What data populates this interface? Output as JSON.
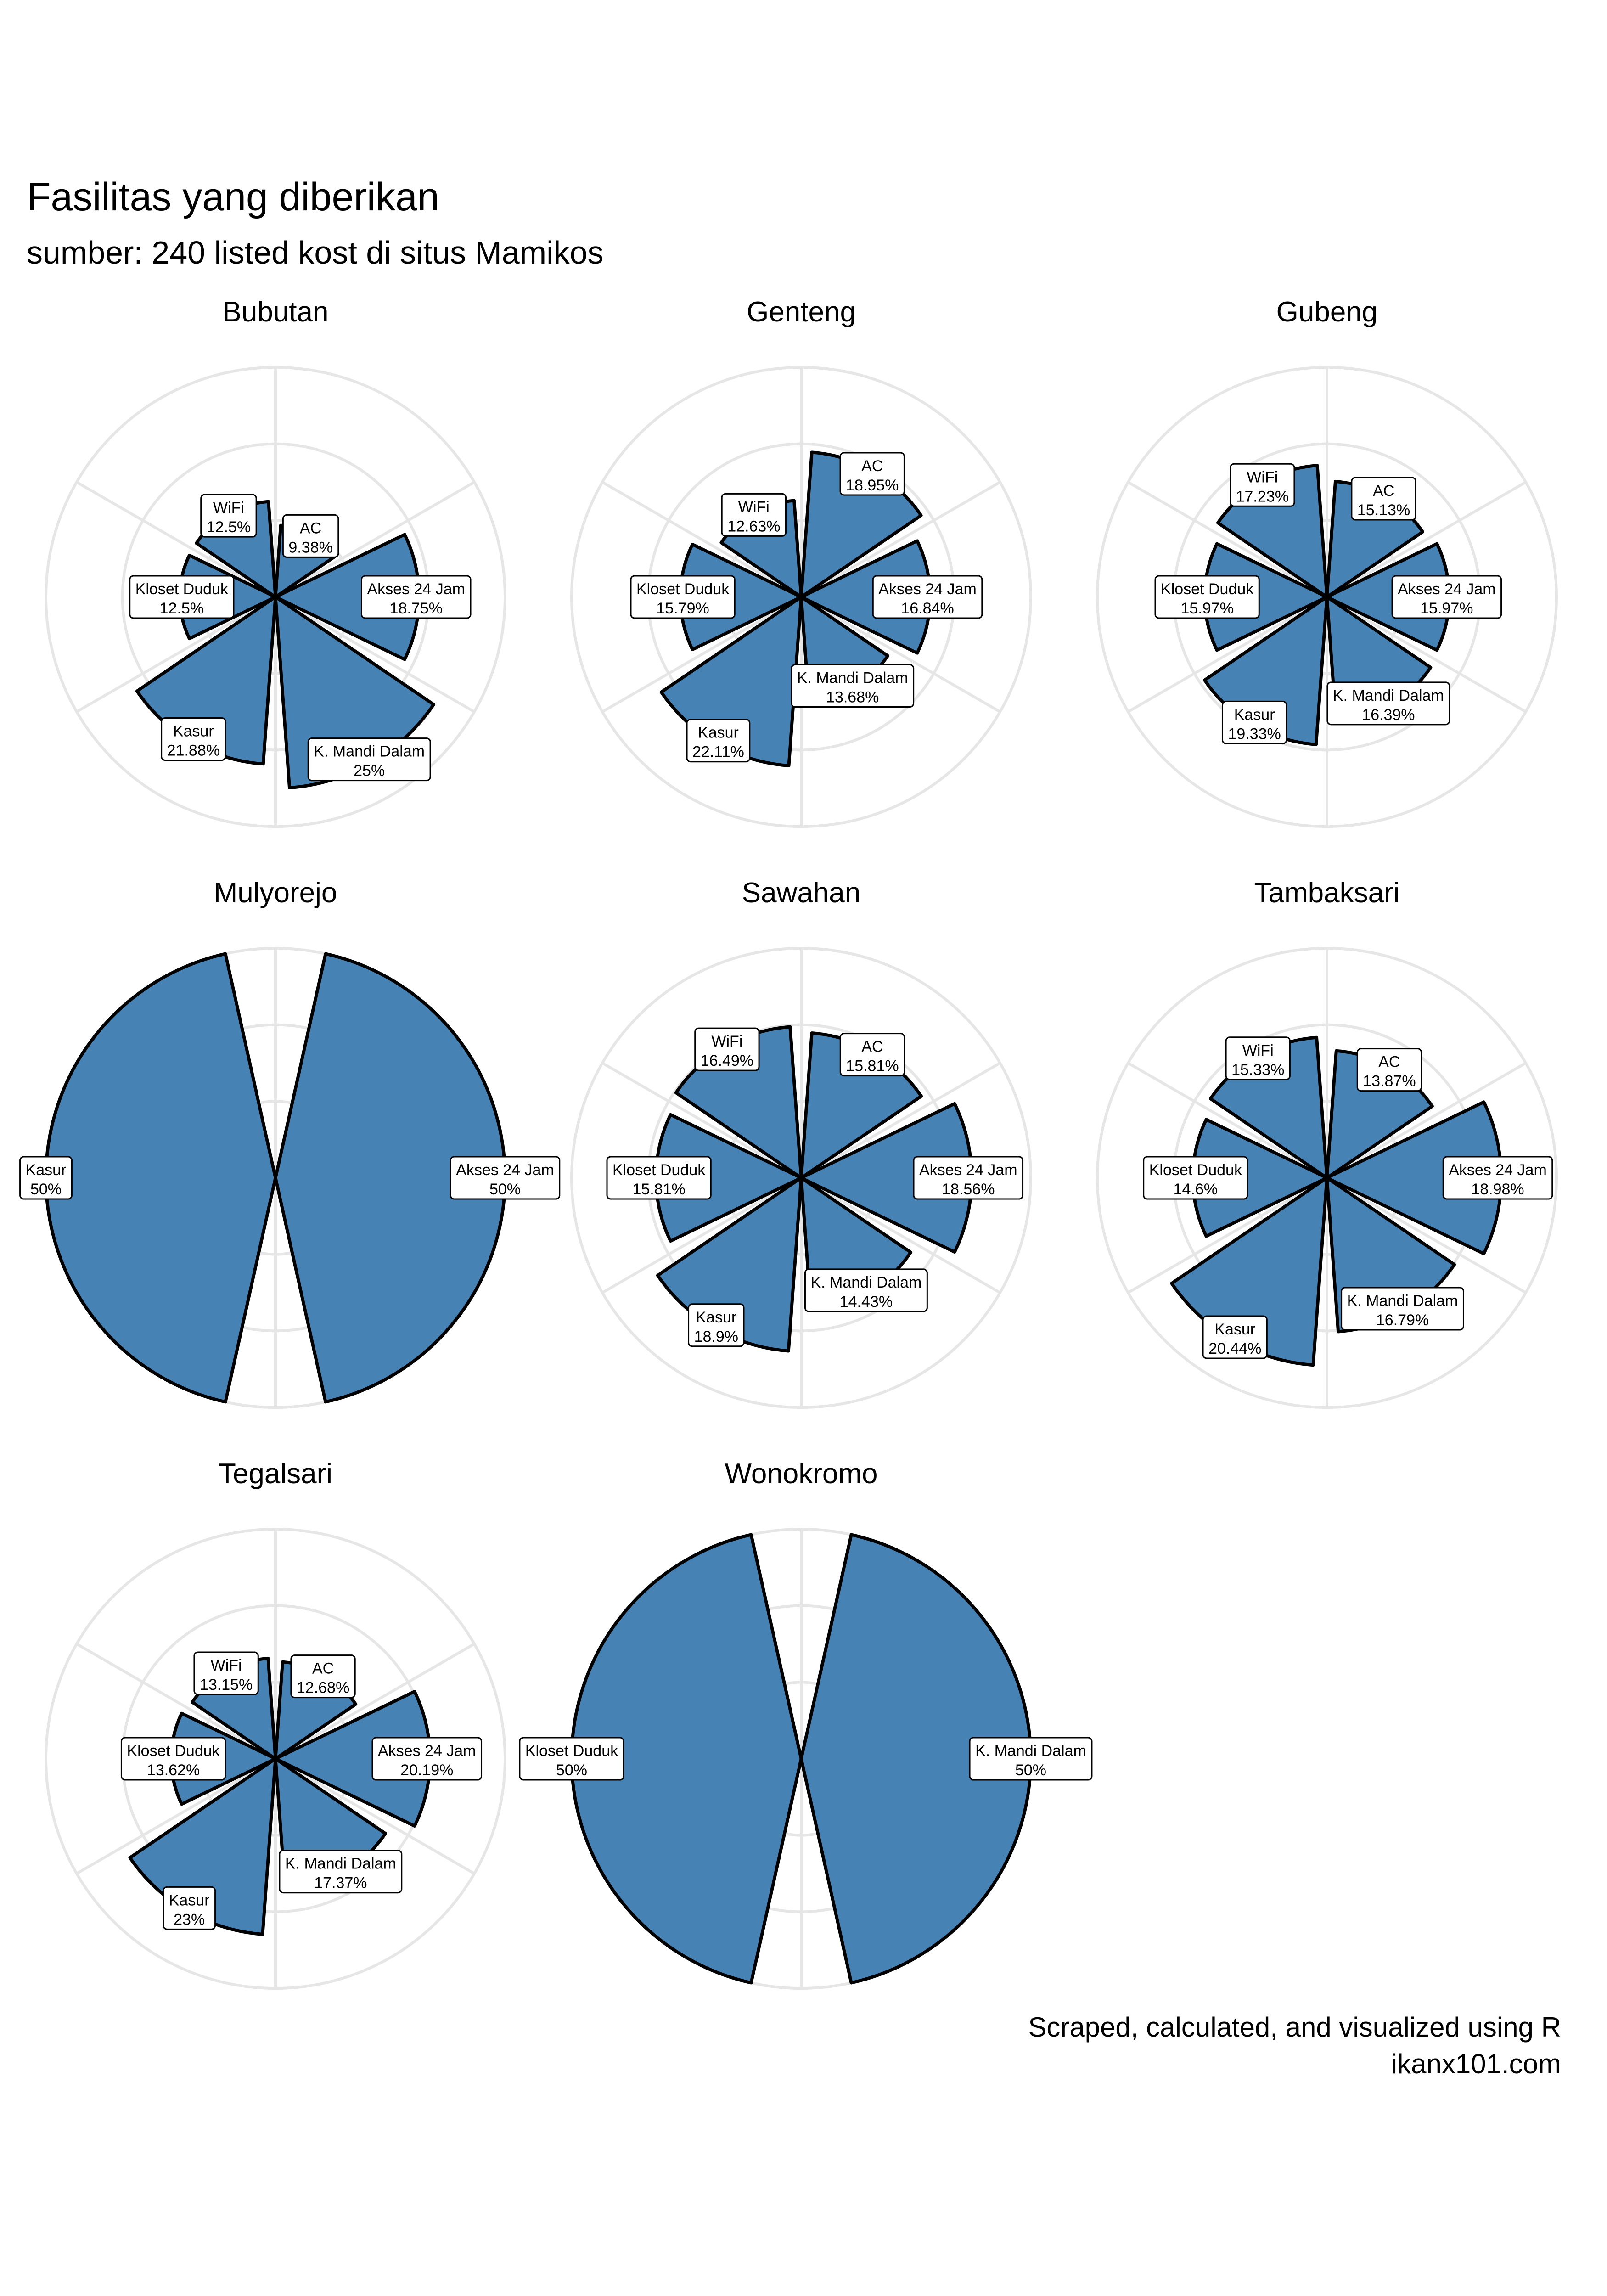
{
  "title": "Fasilitas yang diberikan",
  "subtitle": "sumber: 240 listed kost di situs Mamikos",
  "caption_line1": "Scraped, calculated, and visualized using R",
  "caption_line2": "ikanx101.com",
  "colors": {
    "bar_fill": "#4682B4",
    "bar_stroke": "#000000",
    "grid": "#E6E6E6",
    "label_bg": "#FFFFFF"
  },
  "chart_data": [
    {
      "type": "bar",
      "coord": "polar",
      "title": "Bubutan",
      "ylim": [
        0,
        30
      ],
      "grid": true,
      "legend": "none",
      "categories": [
        "AC",
        "Akses 24 Jam",
        "K. Mandi Dalam",
        "Kasur",
        "Kloset Duduk",
        "WiFi"
      ],
      "values": [
        9.38,
        18.75,
        25,
        21.88,
        12.5,
        12.5
      ],
      "labels": [
        "9.38%",
        "18.75%",
        "25%",
        "21.88%",
        "12.5%",
        "12.5%"
      ]
    },
    {
      "type": "bar",
      "coord": "polar",
      "title": "Genteng",
      "ylim": [
        0,
        30
      ],
      "grid": true,
      "legend": "none",
      "categories": [
        "AC",
        "Akses 24 Jam",
        "K. Mandi Dalam",
        "Kasur",
        "Kloset Duduk",
        "WiFi"
      ],
      "values": [
        18.95,
        16.84,
        13.68,
        22.11,
        15.79,
        12.63
      ],
      "labels": [
        "18.95%",
        "16.84%",
        "13.68%",
        "22.11%",
        "15.79%",
        "12.63%"
      ]
    },
    {
      "type": "bar",
      "coord": "polar",
      "title": "Gubeng",
      "ylim": [
        0,
        30
      ],
      "grid": true,
      "legend": "none",
      "categories": [
        "AC",
        "Akses 24 Jam",
        "K. Mandi Dalam",
        "Kasur",
        "Kloset Duduk",
        "WiFi"
      ],
      "values": [
        15.13,
        15.97,
        16.39,
        19.33,
        15.97,
        17.23
      ],
      "labels": [
        "15.13%",
        "15.97%",
        "16.39%",
        "19.33%",
        "15.97%",
        "17.23%"
      ]
    },
    {
      "type": "bar",
      "coord": "polar",
      "title": "Mulyorejo",
      "ylim": [
        0,
        50
      ],
      "grid": true,
      "legend": "none",
      "categories": [
        "Akses 24 Jam",
        "Kasur"
      ],
      "values": [
        50,
        50
      ],
      "labels": [
        "50%",
        "50%"
      ]
    },
    {
      "type": "bar",
      "coord": "polar",
      "title": "Sawahan",
      "ylim": [
        0,
        25
      ],
      "grid": true,
      "legend": "none",
      "categories": [
        "AC",
        "Akses 24 Jam",
        "K. Mandi Dalam",
        "Kasur",
        "Kloset Duduk",
        "WiFi"
      ],
      "values": [
        15.81,
        18.56,
        14.43,
        18.9,
        15.81,
        16.49
      ],
      "labels": [
        "15.81%",
        "18.56%",
        "14.43%",
        "18.9%",
        "15.81%",
        "16.49%"
      ]
    },
    {
      "type": "bar",
      "coord": "polar",
      "title": "Tambaksari",
      "ylim": [
        0,
        25
      ],
      "grid": true,
      "legend": "none",
      "categories": [
        "AC",
        "Akses 24 Jam",
        "K. Mandi Dalam",
        "Kasur",
        "Kloset Duduk",
        "WiFi"
      ],
      "values": [
        13.87,
        18.98,
        16.79,
        20.44,
        14.6,
        15.33
      ],
      "labels": [
        "13.87%",
        "18.98%",
        "16.79%",
        "20.44%",
        "14.6%",
        "15.33%"
      ]
    },
    {
      "type": "bar",
      "coord": "polar",
      "title": "Tegalsari",
      "ylim": [
        0,
        30
      ],
      "grid": true,
      "legend": "none",
      "categories": [
        "AC",
        "Akses 24 Jam",
        "K. Mandi Dalam",
        "Kasur",
        "Kloset Duduk",
        "WiFi"
      ],
      "values": [
        12.68,
        20.19,
        17.37,
        23,
        13.62,
        13.15
      ],
      "labels": [
        "12.68%",
        "20.19%",
        "17.37%",
        "23%",
        "13.62%",
        "13.15%"
      ]
    },
    {
      "type": "bar",
      "coord": "polar",
      "title": "Wonokromo",
      "ylim": [
        0,
        50
      ],
      "grid": true,
      "legend": "none",
      "categories": [
        "K. Mandi Dalam",
        "Kloset Duduk"
      ],
      "values": [
        50,
        50
      ],
      "labels": [
        "50%",
        "50%"
      ]
    }
  ]
}
